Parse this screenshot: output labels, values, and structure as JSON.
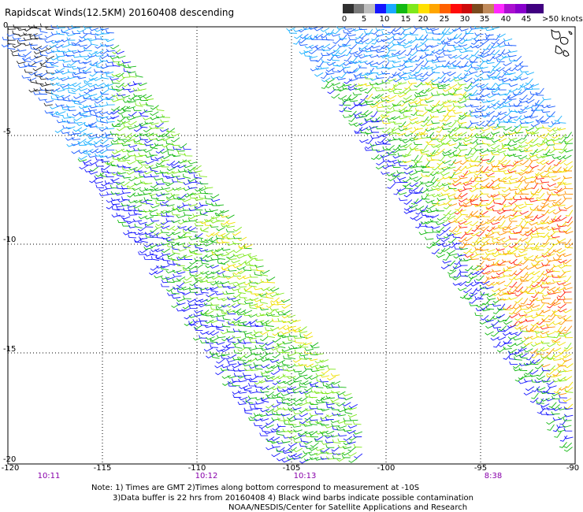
{
  "title": "Rapidscat Winds(12.5KM) 20160408 descending",
  "legend": {
    "colors": [
      "#303030",
      "#7a7a7a",
      "#bdbdbd",
      "#1515ff",
      "#1aa8ff",
      "#12b812",
      "#7ee81c",
      "#ffe000",
      "#ffa500",
      "#ff6000",
      "#ff0a0a",
      "#cc0a0a",
      "#7a4a1e",
      "#c08a5a",
      "#ff28ff",
      "#aa10d0",
      "#8800cc",
      "#400080"
    ],
    "labels": [
      "0",
      "5",
      "10",
      "15",
      "20",
      "25",
      "30",
      "35",
      "40",
      "45",
      ">50 knots"
    ]
  },
  "x_ticks": [
    "-120",
    "-115",
    "-110",
    "-105",
    "-100",
    "-95",
    "-90"
  ],
  "y_ticks": [
    "0",
    "-5",
    "-10",
    "-15",
    "-20"
  ],
  "swath_times": [
    "10:11",
    "10:12",
    "10:13",
    "8:38"
  ],
  "notes": {
    "line1": "Note: 1) Times are GMT 2)Times along bottom correspond to measurement at -10S",
    "line2": "3)Data buffer is 22 hrs from 20160408 4) Black wind barbs indicate possible contamination",
    "line3": "NOAA/NESDIS/Center for Satellite Applications and Research"
  }
}
